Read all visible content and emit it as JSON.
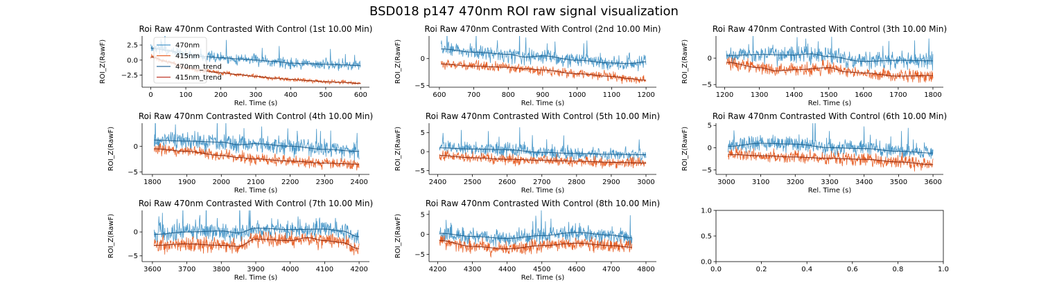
{
  "suptitle": "BSD018 p147 470nm ROI  raw signal visualization",
  "colors": {
    "s470": "#4a98c9",
    "s415": "#e8642c",
    "t470": "#1f5f8b",
    "t415": "#8b2a10",
    "t470_legend": "#2c6ea1",
    "t415_legend": "#c0392b"
  },
  "legend": {
    "placement": "upper-left of first panel",
    "entries": [
      "470nm",
      "415nm",
      "470nm_trend",
      "415nm_trend"
    ]
  },
  "chart_data": [
    {
      "type": "line",
      "title": "Roi Raw 470nm Contrasted With Control (1st 10.00 Min)",
      "xlabel": "Rel. Time (s)",
      "ylabel": "ROI_Z(RawF)",
      "xlim": [
        -25,
        625
      ],
      "ylim": [
        -4.5,
        4.0
      ],
      "xticks": [
        0,
        100,
        200,
        300,
        400,
        500,
        600
      ],
      "xtick_labels": [
        "0",
        "100",
        "200",
        "300",
        "400",
        "500",
        "600"
      ],
      "yticks": [
        -2.5,
        0.0,
        2.5
      ],
      "ytick_labels": [
        "−2.5",
        "0.0",
        "2.5"
      ],
      "t_range": [
        0,
        600
      ],
      "series": [
        {
          "name": "470nm",
          "key": "s470",
          "trend_x": [
            0,
            50,
            100,
            150,
            200,
            250,
            300,
            350,
            400,
            450,
            500,
            550,
            600
          ],
          "trend_y": [
            2.0,
            1.6,
            0.9,
            0.6,
            0.4,
            0.2,
            0.0,
            -0.2,
            -0.5,
            -0.6,
            -0.7,
            -0.8,
            -0.9
          ],
          "noise": 0.45,
          "spikes": 14
        },
        {
          "name": "415nm",
          "key": "s415",
          "trend_x": [
            0,
            50,
            100,
            150,
            200,
            250,
            300,
            350,
            400,
            450,
            500,
            550,
            600
          ],
          "trend_y": [
            0.5,
            -0.3,
            -1.3,
            -1.8,
            -2.1,
            -2.4,
            -2.7,
            -3.0,
            -3.2,
            -3.4,
            -3.6,
            -3.7,
            -3.9
          ],
          "noise": 0.18,
          "spikes": 0
        }
      ]
    },
    {
      "type": "line",
      "title": "Roi Raw 470nm Contrasted With Control (2nd 10.00 Min)",
      "xlabel": "Rel. Time (s)",
      "ylabel": "ROI_Z(RawF)",
      "xlim": [
        570,
        1230
      ],
      "ylim": [
        -5.3,
        4.2
      ],
      "xticks": [
        600,
        700,
        800,
        900,
        1000,
        1100,
        1200
      ],
      "xtick_labels": [
        "600",
        "700",
        "800",
        "900",
        "1000",
        "1100",
        "1200"
      ],
      "yticks": [
        -5,
        0
      ],
      "ytick_labels": [
        "−5",
        "0"
      ],
      "t_range": [
        605,
        1200
      ],
      "series": [
        {
          "name": "470nm",
          "key": "s470",
          "trend_x": [
            605,
            700,
            800,
            850,
            900,
            1000,
            1100,
            1150,
            1200
          ],
          "trend_y": [
            1.8,
            1.2,
            0.8,
            0.3,
            0.5,
            -0.3,
            -0.8,
            -0.9,
            -0.6
          ],
          "noise": 0.7,
          "spikes": 10
        },
        {
          "name": "415nm",
          "key": "s415",
          "trend_x": [
            605,
            700,
            800,
            850,
            900,
            1000,
            1100,
            1150,
            1200
          ],
          "trend_y": [
            -1.0,
            -1.4,
            -1.6,
            -1.9,
            -2.1,
            -2.8,
            -3.3,
            -3.7,
            -4.0
          ],
          "noise": 0.45,
          "spikes": 0
        }
      ]
    },
    {
      "type": "line",
      "title": "Roi Raw 470nm Contrasted With Control (3th 10.00 Min)",
      "xlabel": "Rel. Time (s)",
      "ylabel": "ROI_Z(RawF)",
      "xlim": [
        1175,
        1830
      ],
      "ylim": [
        -5.5,
        4.2
      ],
      "xticks": [
        1200,
        1300,
        1400,
        1500,
        1600,
        1700,
        1800
      ],
      "xtick_labels": [
        "1200",
        "1300",
        "1400",
        "1500",
        "1600",
        "1700",
        "1800"
      ],
      "yticks": [
        -5,
        0
      ],
      "ytick_labels": [
        "−5",
        "0"
      ],
      "t_range": [
        1205,
        1800
      ],
      "series": [
        {
          "name": "470nm",
          "key": "s470",
          "trend_x": [
            1205,
            1300,
            1400,
            1450,
            1500,
            1600,
            1700,
            1800
          ],
          "trend_y": [
            0.5,
            0.7,
            0.6,
            0.8,
            0.3,
            -0.6,
            -0.4,
            -0.5
          ],
          "noise": 0.8,
          "spikes": 12
        },
        {
          "name": "415nm",
          "key": "s415",
          "trend_x": [
            1205,
            1300,
            1350,
            1400,
            1500,
            1550,
            1600,
            1700,
            1800
          ],
          "trend_y": [
            -0.8,
            -1.8,
            -2.4,
            -2.2,
            -1.8,
            -2.6,
            -2.8,
            -3.4,
            -3.3
          ],
          "noise": 0.6,
          "spikes": 0
        }
      ]
    },
    {
      "type": "line",
      "title": "Roi Raw 470nm Contrasted With Control (4th 10.00 Min)",
      "xlabel": "Rel. Time (s)",
      "ylabel": "ROI_Z(RawF)",
      "xlim": [
        1770,
        2430
      ],
      "ylim": [
        -5.5,
        4.5
      ],
      "xticks": [
        1800,
        1900,
        2000,
        2100,
        2200,
        2300,
        2400
      ],
      "xtick_labels": [
        "1800",
        "1900",
        "2000",
        "2100",
        "2200",
        "2300",
        "2400"
      ],
      "yticks": [
        -5,
        0
      ],
      "ytick_labels": [
        "−5",
        "0"
      ],
      "t_range": [
        1805,
        2400
      ],
      "series": [
        {
          "name": "470nm",
          "key": "s470",
          "trend_x": [
            1805,
            1900,
            2000,
            2050,
            2100,
            2200,
            2300,
            2400
          ],
          "trend_y": [
            1.2,
            1.0,
            0.8,
            0.3,
            0.5,
            0.0,
            -0.6,
            -1.0
          ],
          "noise": 0.9,
          "spikes": 14
        },
        {
          "name": "415nm",
          "key": "s415",
          "trend_x": [
            1805,
            1900,
            2000,
            2050,
            2100,
            2200,
            2300,
            2400
          ],
          "trend_y": [
            -0.5,
            -1.0,
            -1.8,
            -2.2,
            -2.5,
            -2.9,
            -3.3,
            -3.5
          ],
          "noise": 0.55,
          "spikes": 0
        }
      ]
    },
    {
      "type": "line",
      "title": "Roi Raw 470nm Contrasted With Control (5th 10.00 Min)",
      "xlabel": "Rel. Time (s)",
      "ylabel": "ROI_Z(RawF)",
      "xlim": [
        2375,
        3030
      ],
      "ylim": [
        -6.0,
        7.5
      ],
      "xticks": [
        2400,
        2500,
        2600,
        2700,
        2800,
        2900,
        3000
      ],
      "xtick_labels": [
        "2400",
        "2500",
        "2600",
        "2700",
        "2800",
        "2900",
        "3000"
      ],
      "yticks": [
        -5,
        0,
        5
      ],
      "ytick_labels": [
        "−5",
        "0",
        "5"
      ],
      "t_range": [
        2405,
        3000
      ],
      "series": [
        {
          "name": "470nm",
          "key": "s470",
          "trend_x": [
            2405,
            2500,
            2600,
            2700,
            2800,
            2900,
            3000
          ],
          "trend_y": [
            1.0,
            0.7,
            0.5,
            -0.2,
            -0.5,
            -0.7,
            -0.8
          ],
          "noise": 0.9,
          "spikes": 12
        },
        {
          "name": "415nm",
          "key": "s415",
          "trend_x": [
            2405,
            2500,
            2600,
            2700,
            2800,
            2900,
            3000
          ],
          "trend_y": [
            -1.0,
            -1.6,
            -2.0,
            -2.3,
            -2.5,
            -2.8,
            -3.0
          ],
          "noise": 0.7,
          "spikes": 0
        }
      ]
    },
    {
      "type": "line",
      "title": "Roi Raw 470nm Contrasted With Control (6th 10.00 Min)",
      "xlabel": "Rel. Time (s)",
      "ylabel": "ROI_Z(RawF)",
      "xlim": [
        2970,
        3630
      ],
      "ylim": [
        -6.0,
        5.5
      ],
      "xticks": [
        3000,
        3100,
        3200,
        3300,
        3400,
        3500,
        3600
      ],
      "xtick_labels": [
        "3000",
        "3100",
        "3200",
        "3300",
        "3400",
        "3500",
        "3600"
      ],
      "yticks": [
        -5,
        0,
        5
      ],
      "ytick_labels": [
        "−5",
        "0",
        "5"
      ],
      "t_range": [
        3005,
        3600
      ],
      "series": [
        {
          "name": "470nm",
          "key": "s470",
          "trend_x": [
            3005,
            3100,
            3200,
            3300,
            3400,
            3500,
            3600
          ],
          "trend_y": [
            0.3,
            1.0,
            0.8,
            0.0,
            -0.2,
            -0.8,
            -1.2
          ],
          "noise": 0.9,
          "spikes": 12
        },
        {
          "name": "415nm",
          "key": "s415",
          "trend_x": [
            3005,
            3100,
            3200,
            3300,
            3400,
            3500,
            3600
          ],
          "trend_y": [
            -1.5,
            -1.8,
            -2.1,
            -2.4,
            -2.6,
            -3.2,
            -3.8
          ],
          "noise": 0.75,
          "spikes": 0
        }
      ]
    },
    {
      "type": "line",
      "title": "Roi Raw 470nm Contrasted With Control (7th 10.00 Min)",
      "xlabel": "Rel. Time (s)",
      "ylabel": "ROI_Z(RawF)",
      "xlim": [
        3570,
        4230
      ],
      "ylim": [
        -6.2,
        4.5
      ],
      "xticks": [
        3600,
        3700,
        3800,
        3900,
        4000,
        4100,
        4200
      ],
      "xtick_labels": [
        "3600",
        "3700",
        "3800",
        "3900",
        "4000",
        "4100",
        "4200"
      ],
      "yticks": [
        -5,
        0
      ],
      "ytick_labels": [
        "−5",
        "0"
      ],
      "t_range": [
        3605,
        4200
      ],
      "series": [
        {
          "name": "470nm",
          "key": "s470",
          "trend_x": [
            3605,
            3700,
            3800,
            3850,
            3900,
            4000,
            4100,
            4150,
            4200
          ],
          "trend_y": [
            -0.5,
            0.0,
            0.2,
            -0.2,
            0.8,
            0.5,
            0.6,
            0.2,
            -1.0
          ],
          "noise": 1.0,
          "spikes": 12
        },
        {
          "name": "415nm",
          "key": "s415",
          "trend_x": [
            3605,
            3700,
            3800,
            3850,
            3900,
            4000,
            4050,
            4100,
            4150,
            4200
          ],
          "trend_y": [
            -2.8,
            -2.5,
            -2.8,
            -3.0,
            -1.5,
            -1.8,
            -1.2,
            -1.8,
            -2.2,
            -3.5
          ],
          "noise": 0.8,
          "spikes": 0
        }
      ]
    },
    {
      "type": "line",
      "title": "Roi Raw 470nm Contrasted With Control (8th 10.00 Min)",
      "xlabel": "Rel. Time (s)",
      "ylabel": "ROI_Z(RawF)",
      "xlim": [
        4175,
        4830
      ],
      "ylim": [
        -6.8,
        6.0
      ],
      "xticks": [
        4200,
        4300,
        4400,
        4500,
        4600,
        4700,
        4800
      ],
      "xtick_labels": [
        "4200",
        "4300",
        "4400",
        "4500",
        "4600",
        "4700",
        "4800"
      ],
      "yticks": [
        -5,
        0,
        5
      ],
      "ytick_labels": [
        "−5",
        "0",
        "5"
      ],
      "t_range": [
        4205,
        4760
      ],
      "series": [
        {
          "name": "470nm",
          "key": "s470",
          "trend_x": [
            4205,
            4300,
            4400,
            4500,
            4600,
            4700,
            4760
          ],
          "trend_y": [
            0.3,
            -0.5,
            -1.0,
            -0.3,
            0.5,
            -0.2,
            -0.8
          ],
          "noise": 1.0,
          "spikes": 10
        },
        {
          "name": "415nm",
          "key": "s415",
          "trend_x": [
            4205,
            4300,
            4400,
            4500,
            4600,
            4700,
            4760
          ],
          "trend_y": [
            -1.5,
            -3.0,
            -3.6,
            -2.8,
            -2.2,
            -2.8,
            -3.2
          ],
          "noise": 0.9,
          "spikes": 0
        }
      ]
    },
    {
      "type": "line",
      "title": "",
      "xlabel": "",
      "ylabel": "",
      "xlim": [
        0.0,
        1.0
      ],
      "ylim": [
        0.0,
        1.0
      ],
      "xticks": [
        0.0,
        0.2,
        0.4,
        0.6,
        0.8,
        1.0
      ],
      "xtick_labels": [
        "0.0",
        "0.2",
        "0.4",
        "0.6",
        "0.8",
        "1.0"
      ],
      "yticks": [
        0.0,
        0.5,
        1.0
      ],
      "ytick_labels": [
        "0.0",
        "0.5",
        "1.0"
      ],
      "series": [],
      "empty": true
    }
  ]
}
